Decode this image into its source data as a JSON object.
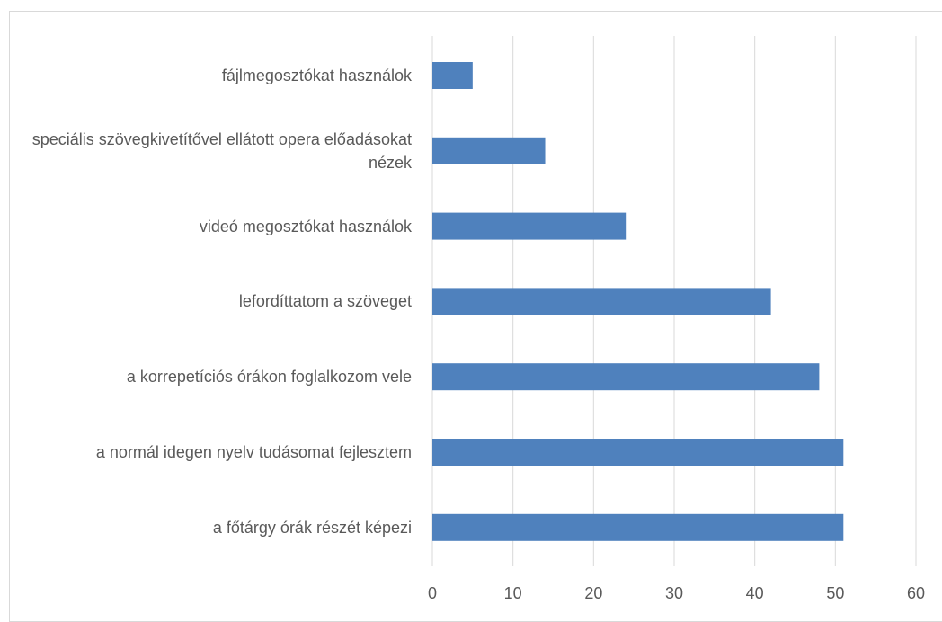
{
  "chart_data": {
    "type": "bar",
    "orientation": "horizontal",
    "categories": [
      "fájlmegosztókat használok",
      "speciális szövegkivetítővel ellátott opera előadásokat nézek",
      "videó megosztókat használok",
      "lefordíttatom a szöveget",
      "a korrepetíciós órákon foglalkozom vele",
      "a normál idegen nyelv tudásomat fejlesztem",
      "a főtárgy órák részét képezi"
    ],
    "values": [
      5,
      14,
      24,
      42,
      48,
      51,
      51
    ],
    "color": "#4f81bd",
    "xlim": [
      0,
      60
    ],
    "xticks": [
      0,
      10,
      20,
      30,
      40,
      50,
      60
    ],
    "grid": true
  }
}
